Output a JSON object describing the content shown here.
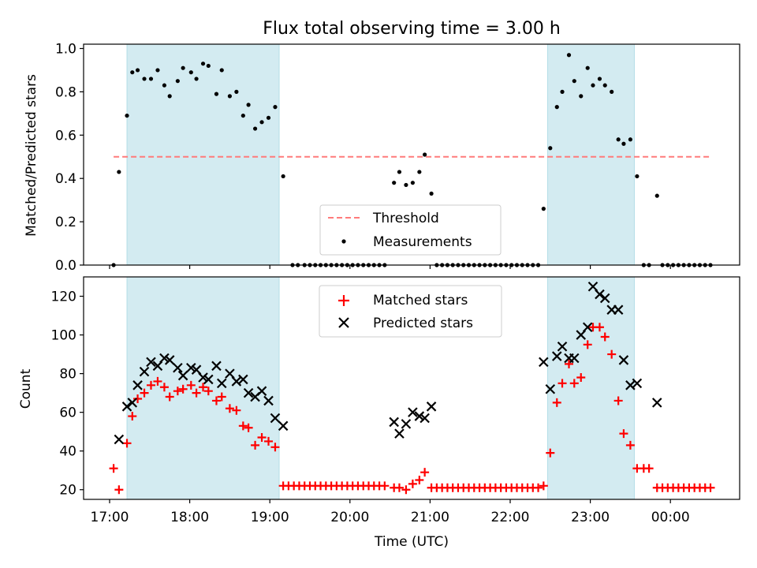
{
  "title": "Flux total observing time = 3.00 h",
  "colors": {
    "shade": "#a8d8e3",
    "threshold": "#ff7b7b",
    "measurement": "#000000",
    "matched": "#ff0000",
    "predicted": "#000000"
  },
  "chart_data": [
    {
      "type": "scatter",
      "panel": "top",
      "ylabel": "Matched/Predicted stars",
      "xlabel": "",
      "ylim": [
        0,
        1.02
      ],
      "yticks": [
        0.0,
        0.2,
        0.4,
        0.6,
        0.8,
        1.0
      ],
      "ytick_labels": [
        "0.0",
        "0.2",
        "0.4",
        "0.6",
        "0.8",
        "1.0"
      ],
      "grid": false,
      "legend_position": "lower center",
      "shaded_intervals": [
        [
          "17:13",
          "19:07"
        ],
        [
          "22:28",
          "23:33"
        ]
      ],
      "threshold": {
        "name": "Threshold",
        "value": 0.5,
        "x_range": [
          "17:03",
          "00:30"
        ]
      },
      "series": [
        {
          "name": "Measurements",
          "marker": "dot",
          "points": [
            [
              "17:03",
              0.0
            ],
            [
              "17:07",
              0.43
            ],
            [
              "17:13",
              0.69
            ],
            [
              "17:17",
              0.89
            ],
            [
              "17:21",
              0.9
            ],
            [
              "17:26",
              0.86
            ],
            [
              "17:31",
              0.86
            ],
            [
              "17:36",
              0.9
            ],
            [
              "17:41",
              0.83
            ],
            [
              "17:45",
              0.78
            ],
            [
              "17:51",
              0.85
            ],
            [
              "17:55",
              0.91
            ],
            [
              "18:01",
              0.89
            ],
            [
              "18:05",
              0.86
            ],
            [
              "18:10",
              0.93
            ],
            [
              "18:14",
              0.92
            ],
            [
              "18:20",
              0.79
            ],
            [
              "18:24",
              0.9
            ],
            [
              "18:30",
              0.78
            ],
            [
              "18:35",
              0.8
            ],
            [
              "18:40",
              0.69
            ],
            [
              "18:44",
              0.74
            ],
            [
              "18:49",
              0.63
            ],
            [
              "18:54",
              0.66
            ],
            [
              "18:59",
              0.68
            ],
            [
              "19:04",
              0.73
            ],
            [
              "19:10",
              0.41
            ],
            [
              "19:17",
              0.0
            ],
            [
              "19:21",
              0.0
            ],
            [
              "19:26",
              0.0
            ],
            [
              "19:30",
              0.0
            ],
            [
              "19:34",
              0.0
            ],
            [
              "19:38",
              0.0
            ],
            [
              "19:42",
              0.0
            ],
            [
              "19:46",
              0.0
            ],
            [
              "19:50",
              0.0
            ],
            [
              "19:54",
              0.0
            ],
            [
              "19:58",
              0.0
            ],
            [
              "20:02",
              0.0
            ],
            [
              "20:06",
              0.0
            ],
            [
              "20:10",
              0.0
            ],
            [
              "20:14",
              0.0
            ],
            [
              "20:18",
              0.0
            ],
            [
              "20:22",
              0.0
            ],
            [
              "20:26",
              0.0
            ],
            [
              "20:33",
              0.38
            ],
            [
              "20:37",
              0.43
            ],
            [
              "20:42",
              0.37
            ],
            [
              "20:47",
              0.38
            ],
            [
              "20:52",
              0.43
            ],
            [
              "20:56",
              0.51
            ],
            [
              "21:01",
              0.33
            ],
            [
              "21:05",
              0.0
            ],
            [
              "21:09",
              0.0
            ],
            [
              "21:13",
              0.0
            ],
            [
              "21:17",
              0.0
            ],
            [
              "21:21",
              0.0
            ],
            [
              "21:25",
              0.0
            ],
            [
              "21:29",
              0.0
            ],
            [
              "21:33",
              0.0
            ],
            [
              "21:37",
              0.0
            ],
            [
              "21:41",
              0.0
            ],
            [
              "21:45",
              0.0
            ],
            [
              "21:49",
              0.0
            ],
            [
              "21:53",
              0.0
            ],
            [
              "21:57",
              0.0
            ],
            [
              "22:01",
              0.0
            ],
            [
              "22:05",
              0.0
            ],
            [
              "22:09",
              0.0
            ],
            [
              "22:13",
              0.0
            ],
            [
              "22:17",
              0.0
            ],
            [
              "22:21",
              0.0
            ],
            [
              "22:25",
              0.26
            ],
            [
              "22:30",
              0.54
            ],
            [
              "22:35",
              0.73
            ],
            [
              "22:39",
              0.8
            ],
            [
              "22:44",
              0.97
            ],
            [
              "22:48",
              0.85
            ],
            [
              "22:53",
              0.78
            ],
            [
              "22:58",
              0.91
            ],
            [
              "23:02",
              0.83
            ],
            [
              "23:07",
              0.86
            ],
            [
              "23:11",
              0.83
            ],
            [
              "23:16",
              0.8
            ],
            [
              "23:21",
              0.58
            ],
            [
              "23:25",
              0.56
            ],
            [
              "23:30",
              0.58
            ],
            [
              "23:35",
              0.41
            ],
            [
              "23:40",
              0.0
            ],
            [
              "23:44",
              0.0
            ],
            [
              "23:50",
              0.32
            ],
            [
              "23:54",
              0.0
            ],
            [
              "23:58",
              0.0
            ],
            [
              "00:02",
              0.0
            ],
            [
              "00:06",
              0.0
            ],
            [
              "00:10",
              0.0
            ],
            [
              "00:14",
              0.0
            ],
            [
              "00:18",
              0.0
            ],
            [
              "00:22",
              0.0
            ],
            [
              "00:26",
              0.0
            ],
            [
              "00:30",
              0.0
            ]
          ]
        }
      ]
    },
    {
      "type": "scatter",
      "panel": "bottom",
      "ylabel": "Count",
      "xlabel": "Time (UTC)",
      "ylim": [
        15,
        130
      ],
      "yticks": [
        20,
        40,
        60,
        80,
        100,
        120
      ],
      "ytick_labels": [
        "20",
        "40",
        "60",
        "80",
        "100",
        "120"
      ],
      "xticks": [
        "17:00",
        "18:00",
        "19:00",
        "20:00",
        "21:00",
        "22:00",
        "23:00",
        "00:00"
      ],
      "grid": false,
      "legend_position": "upper center",
      "shaded_intervals": [
        [
          "17:13",
          "19:07"
        ],
        [
          "22:28",
          "23:33"
        ]
      ],
      "series": [
        {
          "name": "Matched stars",
          "marker": "plus",
          "points": [
            [
              "17:03",
              31
            ],
            [
              "17:07",
              20
            ],
            [
              "17:13",
              44
            ],
            [
              "17:17",
              58
            ],
            [
              "17:21",
              67
            ],
            [
              "17:26",
              70
            ],
            [
              "17:31",
              74
            ],
            [
              "17:36",
              76
            ],
            [
              "17:41",
              73
            ],
            [
              "17:45",
              68
            ],
            [
              "17:51",
              71
            ],
            [
              "17:55",
              72
            ],
            [
              "18:01",
              74
            ],
            [
              "18:05",
              70
            ],
            [
              "18:10",
              73
            ],
            [
              "18:14",
              71
            ],
            [
              "18:20",
              66
            ],
            [
              "18:24",
              68
            ],
            [
              "18:30",
              62
            ],
            [
              "18:35",
              61
            ],
            [
              "18:40",
              53
            ],
            [
              "18:44",
              52
            ],
            [
              "18:49",
              43
            ],
            [
              "18:54",
              47
            ],
            [
              "18:59",
              45
            ],
            [
              "19:04",
              42
            ],
            [
              "19:10",
              22
            ],
            [
              "19:14",
              22
            ],
            [
              "19:18",
              22
            ],
            [
              "19:22",
              22
            ],
            [
              "19:26",
              22
            ],
            [
              "19:30",
              22
            ],
            [
              "19:34",
              22
            ],
            [
              "19:38",
              22
            ],
            [
              "19:42",
              22
            ],
            [
              "19:46",
              22
            ],
            [
              "19:50",
              22
            ],
            [
              "19:54",
              22
            ],
            [
              "19:58",
              22
            ],
            [
              "20:02",
              22
            ],
            [
              "20:06",
              22
            ],
            [
              "20:10",
              22
            ],
            [
              "20:14",
              22
            ],
            [
              "20:18",
              22
            ],
            [
              "20:22",
              22
            ],
            [
              "20:26",
              22
            ],
            [
              "20:33",
              21
            ],
            [
              "20:37",
              21
            ],
            [
              "20:42",
              20
            ],
            [
              "20:47",
              23
            ],
            [
              "20:52",
              25
            ],
            [
              "20:56",
              29
            ],
            [
              "21:01",
              21
            ],
            [
              "21:05",
              21
            ],
            [
              "21:09",
              21
            ],
            [
              "21:13",
              21
            ],
            [
              "21:17",
              21
            ],
            [
              "21:21",
              21
            ],
            [
              "21:25",
              21
            ],
            [
              "21:29",
              21
            ],
            [
              "21:33",
              21
            ],
            [
              "21:37",
              21
            ],
            [
              "21:41",
              21
            ],
            [
              "21:45",
              21
            ],
            [
              "21:49",
              21
            ],
            [
              "21:53",
              21
            ],
            [
              "21:57",
              21
            ],
            [
              "22:01",
              21
            ],
            [
              "22:05",
              21
            ],
            [
              "22:09",
              21
            ],
            [
              "22:13",
              21
            ],
            [
              "22:17",
              21
            ],
            [
              "22:21",
              21
            ],
            [
              "22:25",
              22
            ],
            [
              "22:30",
              39
            ],
            [
              "22:35",
              65
            ],
            [
              "22:39",
              75
            ],
            [
              "22:44",
              85
            ],
            [
              "22:48",
              75
            ],
            [
              "22:53",
              78
            ],
            [
              "22:58",
              95
            ],
            [
              "23:02",
              104
            ],
            [
              "23:07",
              104
            ],
            [
              "23:11",
              99
            ],
            [
              "23:16",
              90
            ],
            [
              "23:21",
              66
            ],
            [
              "23:25",
              49
            ],
            [
              "23:30",
              43
            ],
            [
              "23:35",
              31
            ],
            [
              "23:40",
              31
            ],
            [
              "23:44",
              31
            ],
            [
              "23:50",
              21
            ],
            [
              "23:54",
              21
            ],
            [
              "23:58",
              21
            ],
            [
              "00:02",
              21
            ],
            [
              "00:06",
              21
            ],
            [
              "00:10",
              21
            ],
            [
              "00:14",
              21
            ],
            [
              "00:18",
              21
            ],
            [
              "00:22",
              21
            ],
            [
              "00:26",
              21
            ],
            [
              "00:30",
              21
            ]
          ]
        },
        {
          "name": "Predicted stars",
          "marker": "x",
          "points": [
            [
              "17:07",
              46
            ],
            [
              "17:13",
              63
            ],
            [
              "17:17",
              65
            ],
            [
              "17:21",
              74
            ],
            [
              "17:26",
              81
            ],
            [
              "17:31",
              86
            ],
            [
              "17:36",
              84
            ],
            [
              "17:41",
              88
            ],
            [
              "17:45",
              87
            ],
            [
              "17:51",
              83
            ],
            [
              "17:55",
              79
            ],
            [
              "18:01",
              83
            ],
            [
              "18:05",
              82
            ],
            [
              "18:10",
              78
            ],
            [
              "18:14",
              77
            ],
            [
              "18:20",
              84
            ],
            [
              "18:24",
              75
            ],
            [
              "18:30",
              80
            ],
            [
              "18:35",
              76
            ],
            [
              "18:40",
              77
            ],
            [
              "18:44",
              70
            ],
            [
              "18:49",
              68
            ],
            [
              "18:54",
              71
            ],
            [
              "18:59",
              66
            ],
            [
              "19:04",
              57
            ],
            [
              "19:10",
              53
            ],
            [
              "20:33",
              55
            ],
            [
              "20:37",
              49
            ],
            [
              "20:42",
              54
            ],
            [
              "20:47",
              60
            ],
            [
              "20:52",
              58
            ],
            [
              "20:56",
              57
            ],
            [
              "21:01",
              63
            ],
            [
              "22:25",
              86
            ],
            [
              "22:30",
              72
            ],
            [
              "22:35",
              89
            ],
            [
              "22:39",
              94
            ],
            [
              "22:44",
              88
            ],
            [
              "22:48",
              88
            ],
            [
              "22:53",
              100
            ],
            [
              "22:58",
              104
            ],
            [
              "23:02",
              125
            ],
            [
              "23:07",
              121
            ],
            [
              "23:11",
              119
            ],
            [
              "23:16",
              113
            ],
            [
              "23:21",
              113
            ],
            [
              "23:25",
              87
            ],
            [
              "23:30",
              74
            ],
            [
              "23:35",
              75
            ],
            [
              "23:50",
              65
            ]
          ]
        }
      ]
    }
  ]
}
